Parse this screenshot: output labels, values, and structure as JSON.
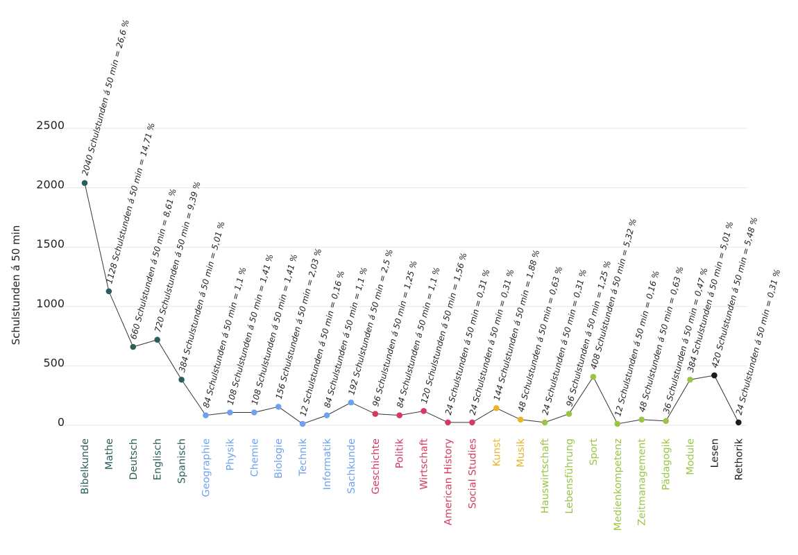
{
  "chart_data": {
    "type": "line",
    "title": "",
    "xlabel": "",
    "ylabel": "Schulstunden á 50 min",
    "ylim": [
      0,
      2500
    ],
    "yticks": [
      0,
      500,
      1000,
      1500,
      2000,
      2500
    ],
    "grid": true,
    "legend": "none",
    "categories": [
      "Bibelkunde",
      "Mathe",
      "Deutsch",
      "Englisch",
      "Spanisch",
      "Geographie",
      "Physik",
      "Chemie",
      "Biologie",
      "Technik",
      "Informatik",
      "Sachkunde",
      "Geschichte",
      "Politik",
      "Wirtschaft",
      "American History",
      "Social Studies",
      "Kunst",
      "Musik",
      "Hauswirtschaft",
      "Lebensführung",
      "Sport",
      "Medienkompetenz",
      "Zeitmanagement",
      "Pädagogik",
      "Module",
      "Lesen",
      "Rethorik"
    ],
    "values": [
      2040,
      1128,
      660,
      720,
      384,
      84,
      108,
      108,
      156,
      12,
      84,
      192,
      96,
      84,
      120,
      24,
      24,
      144,
      48,
      24,
      96,
      408,
      12,
      48,
      36,
      384,
      420,
      24
    ],
    "data_labels": [
      "2040 Schulstunden á 50 min = 26,6 %",
      "1128 Schulstunden á 50 min = 14,71 %",
      "660 Schulstunden á 50 min = 8,61 %",
      "720 Schulstunden á 50 min = 9,39 %",
      "384 Schulstunden á 50 min = 5,01 %",
      "84 Schulstunden á 50 min = 1,1 %",
      "108 Schulstunden á 50 min = 1,41 %",
      "108 Schulstunden á 50 min = 1,41 %",
      "156 Schulstunden á 50 min = 2,03 %",
      "12 Schulstunden á 50 min = 0,16 %",
      "84 Schulstunden á 50 min = 1,1 %",
      "192 Schulstunden á 50 min = 2,5 %",
      "96 Schulstunden á 50 min = 1,25 %",
      "84 Schulstunden á 50 min = 1,1 %",
      "120 Schulstunden á 50 min = 1,56 %",
      "24 Schulstunden á 50 min = 0,31 %",
      "24 Schulstunden á 50 min = 0,31 %",
      "144 Schulstunden á 50 min = 1,88 %",
      "48 Schulstunden á 50 min = 0,63 %",
      "24 Schulstunden á 50 min = 0,31 %",
      "96 Schulstunden á 50 min = 1,25 %",
      "408 Schulstunden á 50 min = 5,32 %",
      "12 Schulstunden á 50 min = 0,16 %",
      "48 Schulstunden á 50 min = 0,63 %",
      "36 Schulstunden á 50 min = 0,47 %",
      "384 Schulstunden á 50 min = 5,01 %",
      "420 Schulstunden á 50 min = 5,48 %",
      "24 Schulstunden á 50 min = 0,31 %"
    ],
    "point_colors": [
      "#2a5e5a",
      "#2a5e5a",
      "#2a5e5a",
      "#2a5e5a",
      "#2a5e5a",
      "#6ea1ee",
      "#6ea1ee",
      "#6ea1ee",
      "#6ea1ee",
      "#6ea1ee",
      "#6ea1ee",
      "#6ea1ee",
      "#d4395f",
      "#d4395f",
      "#d4395f",
      "#d4395f",
      "#d4395f",
      "#eeb428",
      "#eeb428",
      "#9ac544",
      "#9ac544",
      "#9ac544",
      "#9ac544",
      "#9ac544",
      "#9ac544",
      "#9ac544",
      "#1c1c1c",
      "#1c1c1c"
    ],
    "line_color": "#333333",
    "grid_color": "#e6e6e6"
  }
}
